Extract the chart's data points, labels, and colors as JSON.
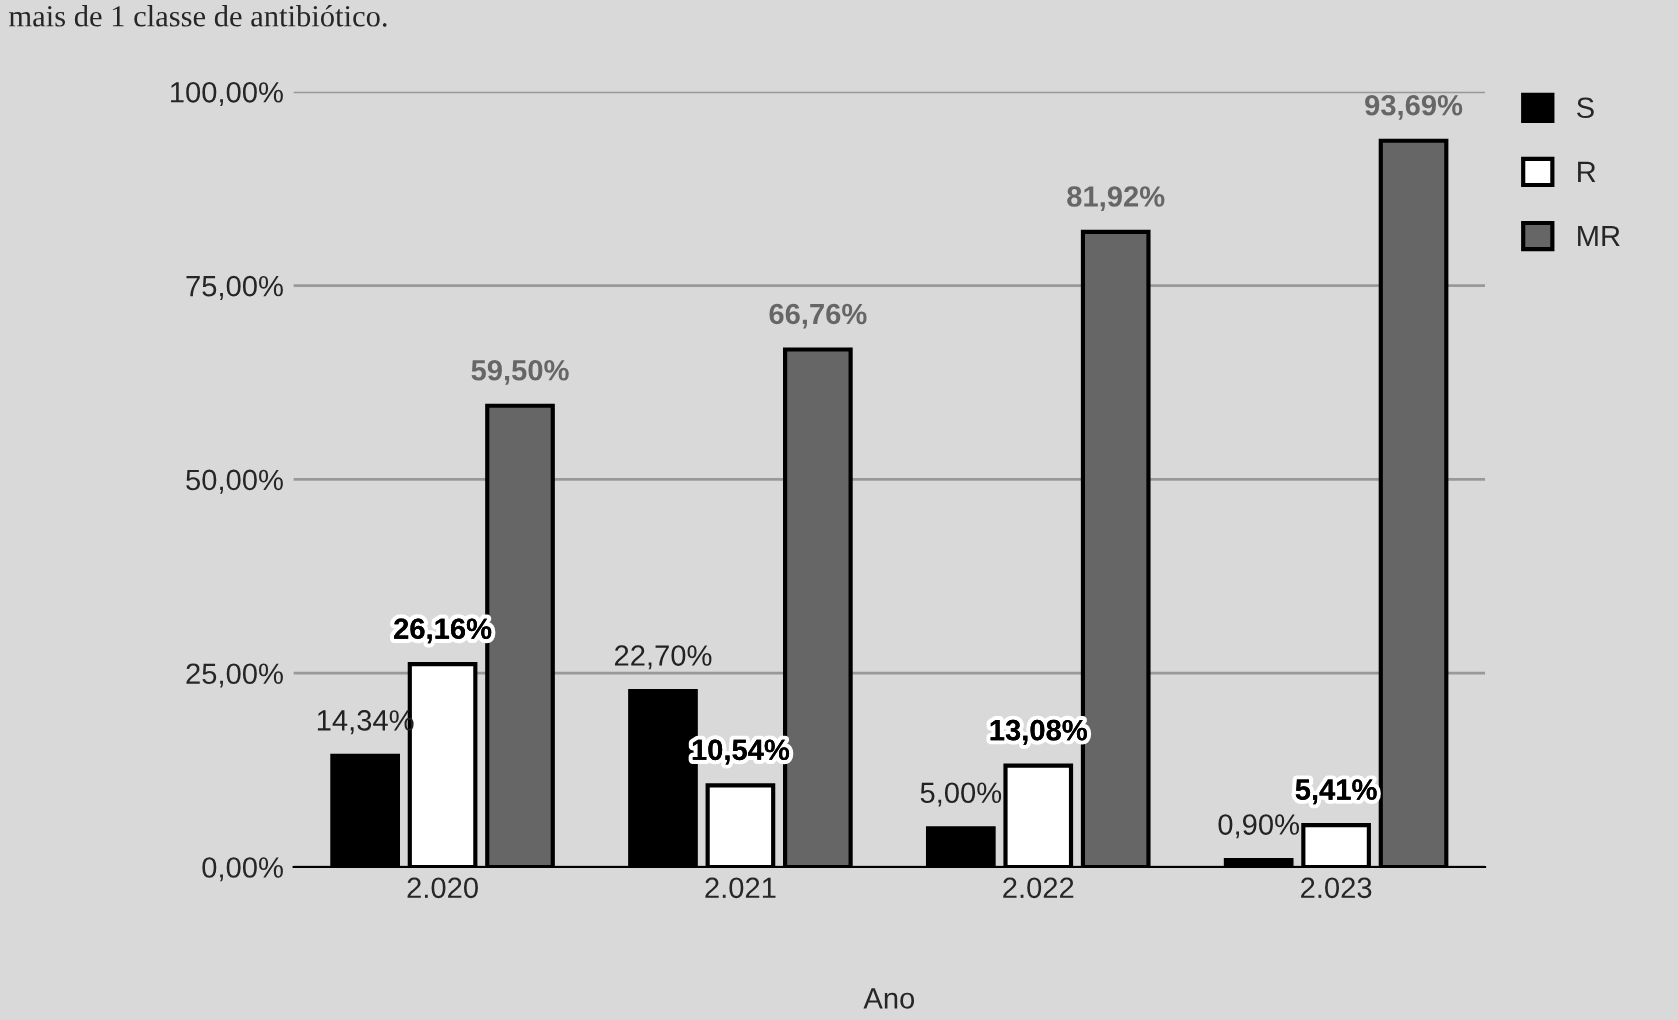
{
  "chart_data": {
    "type": "bar",
    "title": "mais de 1 classe de antibiótico.",
    "xlabel": "Ano",
    "categories": [
      "2.020",
      "2.021",
      "2.022",
      "2.023"
    ],
    "series": [
      {
        "name": "S",
        "color": "#000000",
        "values": [
          14.34,
          22.7,
          5.0,
          0.9
        ],
        "value_labels": [
          "14,34%",
          "22,70%",
          "5,00%",
          "0,90%"
        ]
      },
      {
        "name": "R",
        "color": "#ffffff",
        "values": [
          26.16,
          10.54,
          13.08,
          5.41
        ],
        "value_labels": [
          "26,16%",
          "10,54%",
          "13,08%",
          "5,41%"
        ]
      },
      {
        "name": "MR",
        "color": "#666666",
        "values": [
          59.5,
          66.76,
          81.92,
          93.69
        ],
        "value_labels": [
          "59,50%",
          "66,76%",
          "81,92%",
          "93,69%"
        ]
      }
    ],
    "ylim": [
      0,
      100
    ],
    "yticks": [
      {
        "value": 0,
        "label": "0,00%"
      },
      {
        "value": 25,
        "label": "25,00%"
      },
      {
        "value": 50,
        "label": "50,00%"
      },
      {
        "value": 75,
        "label": "75,00%"
      },
      {
        "value": 100,
        "label": "100,00%"
      }
    ],
    "grid": "y",
    "legend": "top right"
  }
}
